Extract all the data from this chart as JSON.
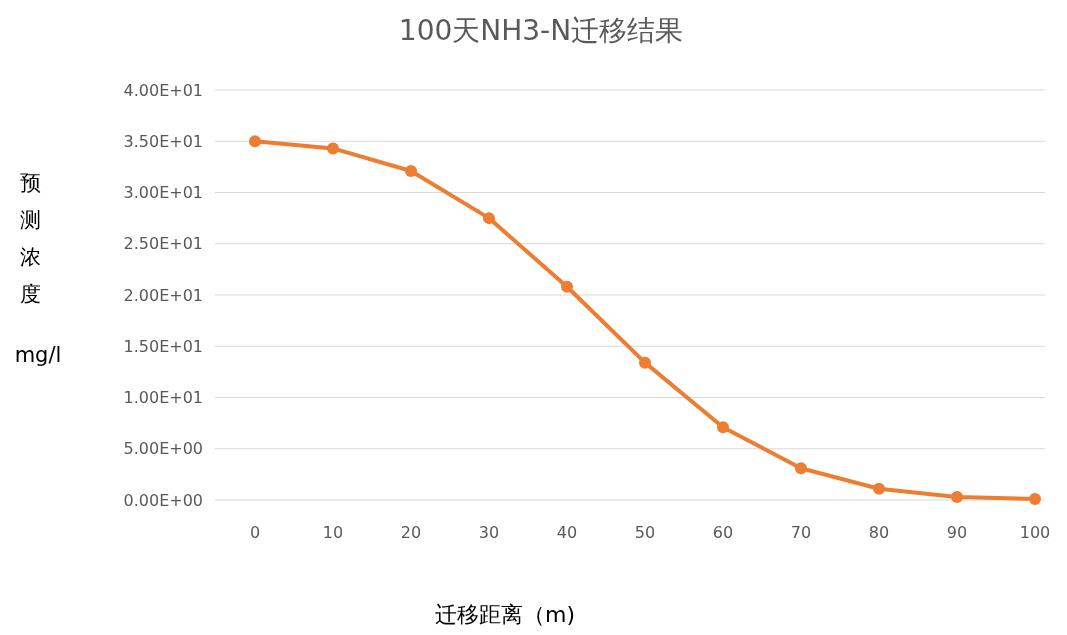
{
  "chart_data": {
    "type": "line",
    "title": "100天NH3-N迁移结果",
    "xlabel": "迁移距离（m)",
    "ylabel": "预测浓度 mg/l",
    "categories": [
      "0",
      "10",
      "20",
      "30",
      "40",
      "50",
      "60",
      "70",
      "80",
      "90",
      "100"
    ],
    "series": [
      {
        "color": "#ed7d31",
        "values": [
          35.0,
          34.3,
          32.1,
          27.5,
          20.8,
          13.4,
          7.1,
          3.1,
          1.1,
          0.3,
          0.1
        ]
      }
    ],
    "ylim": [
      0,
      40
    ],
    "yticks": [
      {
        "value": 0,
        "label": "0.00E+00"
      },
      {
        "value": 5,
        "label": "5.00E+00"
      },
      {
        "value": 10,
        "label": "1.00E+01"
      },
      {
        "value": 15,
        "label": "1.50E+01"
      },
      {
        "value": 20,
        "label": "2.00E+01"
      },
      {
        "value": 25,
        "label": "2.50E+01"
      },
      {
        "value": 30,
        "label": "3.00E+01"
      },
      {
        "value": 35,
        "label": "3.50E+01"
      },
      {
        "value": 40,
        "label": "4.00E+01"
      }
    ],
    "grid": "y",
    "marker": "circle",
    "line_style": "solid"
  }
}
